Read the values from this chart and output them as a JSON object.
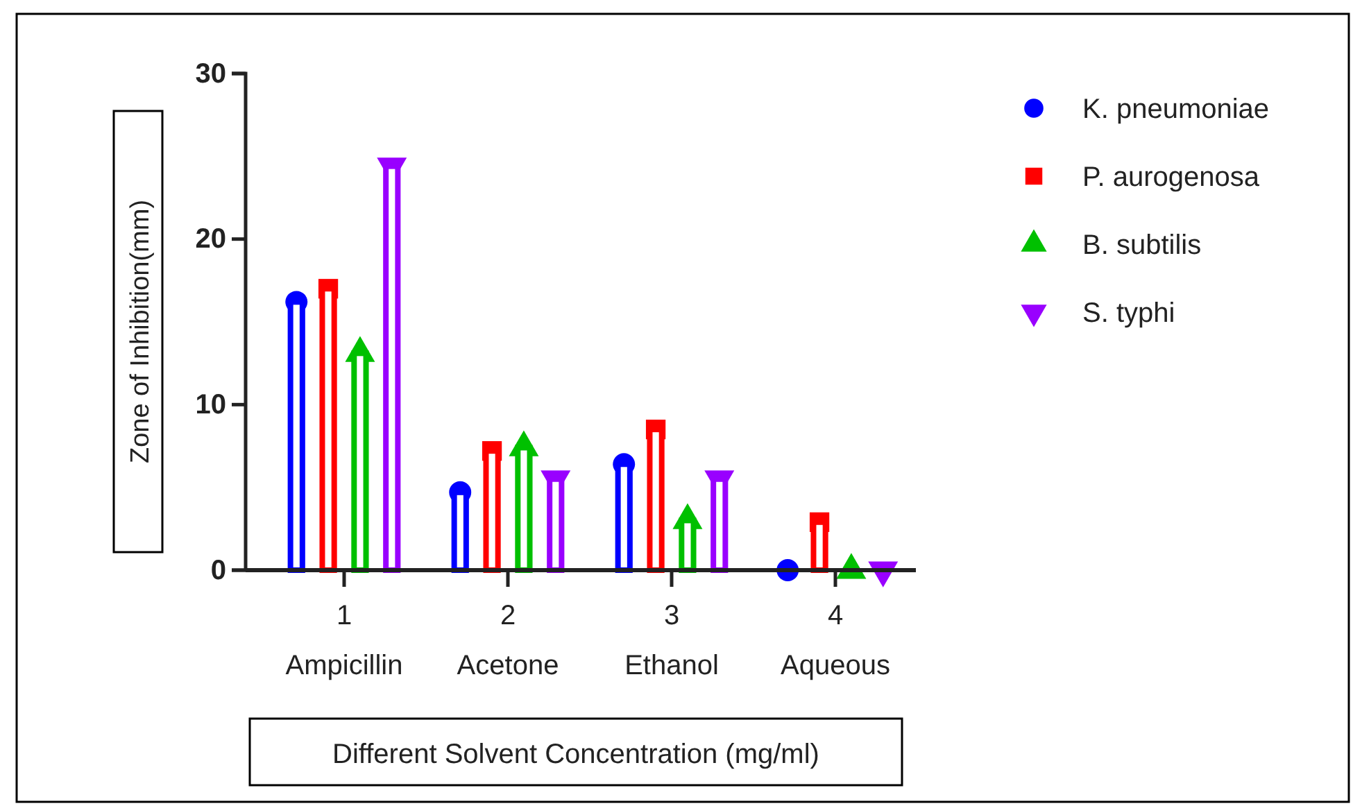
{
  "chart_data": {
    "type": "bar",
    "xlabel": "Different Solvent Concentration (mg/ml)",
    "ylabel": "Zone of Inhibition(mm)",
    "categories": [
      "1\nAmpicillin",
      "2\nAcetone",
      "3\nEthanol",
      "4\nAqueous"
    ],
    "ylim": [
      0,
      30
    ],
    "yticks": [
      0,
      10,
      20,
      30
    ],
    "legend": "right",
    "grid": false,
    "series": [
      {
        "name": "K. pneumoniae",
        "color": "#0000ff",
        "marker": "circle",
        "values": [
          16.2,
          4.7,
          6.4,
          0
        ]
      },
      {
        "name": "P. aurogenosa",
        "color": "#ff0000",
        "marker": "square",
        "values": [
          17.0,
          7.2,
          8.5,
          2.9
        ]
      },
      {
        "name": "B. subtilis",
        "color": "#00c000",
        "marker": "triangle",
        "values": [
          13.1,
          7.4,
          3.0,
          0
        ]
      },
      {
        "name": "S. typhi",
        "color": "#9900ff",
        "marker": "triangle-down",
        "values": [
          24.4,
          5.5,
          5.5,
          0
        ]
      }
    ]
  }
}
